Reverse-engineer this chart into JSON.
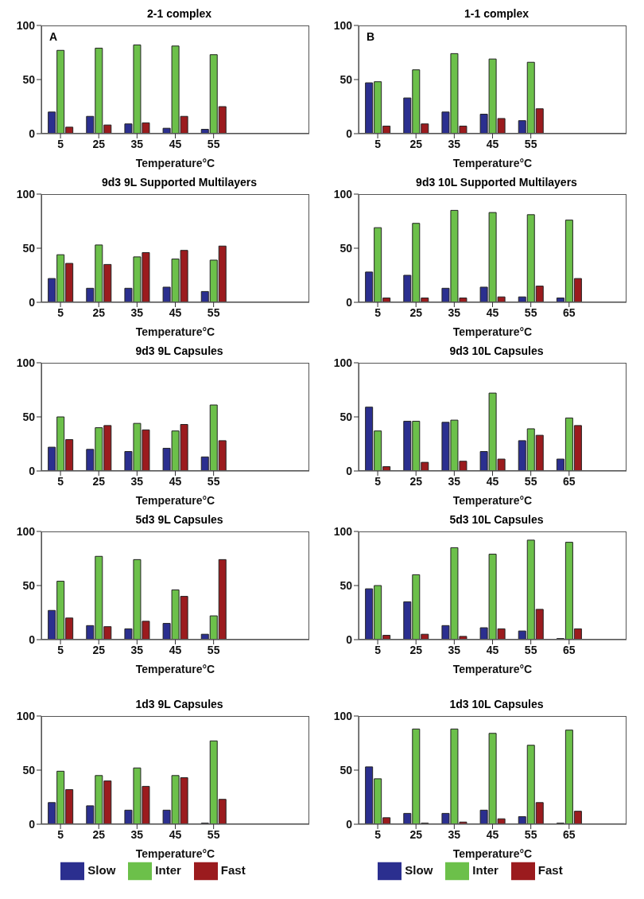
{
  "chart_data": [
    {
      "type": "bar",
      "title": "2-1 complex",
      "xlabel": "Temperature°C",
      "annotations": [
        "A"
      ],
      "categories": [
        "5",
        "25",
        "35",
        "45",
        "55"
      ],
      "ylim": [
        0,
        100
      ],
      "yticks": [
        0,
        50,
        100
      ],
      "series": [
        {
          "color": "#2b2f8f",
          "values": [
            20,
            16,
            9,
            5,
            4
          ]
        },
        {
          "color": "#6cc04a",
          "values": [
            77,
            79,
            82,
            81,
            73
          ]
        },
        {
          "color": "#9b1b1e",
          "values": [
            6,
            8,
            10,
            16,
            25
          ]
        }
      ]
    },
    {
      "type": "bar",
      "title": "1-1 complex",
      "xlabel": "Temperature°C",
      "annotations": [
        "B"
      ],
      "categories": [
        "5",
        "25",
        "35",
        "45",
        "55"
      ],
      "ylim": [
        0,
        100
      ],
      "yticks": [
        0,
        50,
        100
      ],
      "series": [
        {
          "color": "#2b2f8f",
          "values": [
            47,
            33,
            20,
            18,
            12
          ]
        },
        {
          "color": "#6cc04a",
          "values": [
            48,
            59,
            74,
            69,
            66
          ]
        },
        {
          "color": "#9b1b1e",
          "values": [
            7,
            9,
            7,
            14,
            23
          ]
        }
      ]
    },
    {
      "type": "bar",
      "title": "9d3 9L Supported Multilayers",
      "xlabel": "Temperature°C",
      "categories": [
        "5",
        "25",
        "35",
        "45",
        "55"
      ],
      "ylim": [
        0,
        100
      ],
      "yticks": [
        0,
        50,
        100
      ],
      "series": [
        {
          "color": "#2b2f8f",
          "values": [
            22,
            13,
            13,
            14,
            10
          ]
        },
        {
          "color": "#6cc04a",
          "values": [
            44,
            53,
            42,
            40,
            39
          ]
        },
        {
          "color": "#9b1b1e",
          "values": [
            36,
            35,
            46,
            48,
            52
          ]
        }
      ]
    },
    {
      "type": "bar",
      "title": "9d3 10L Supported Multilayers",
      "xlabel": "Temperature°C",
      "categories": [
        "5",
        "25",
        "35",
        "45",
        "55",
        "65"
      ],
      "ylim": [
        0,
        100
      ],
      "yticks": [
        0,
        50,
        100
      ],
      "series": [
        {
          "color": "#2b2f8f",
          "values": [
            28,
            25,
            13,
            14,
            5,
            4
          ]
        },
        {
          "color": "#6cc04a",
          "values": [
            69,
            73,
            85,
            83,
            81,
            76
          ]
        },
        {
          "color": "#9b1b1e",
          "values": [
            4,
            4,
            4,
            5,
            15,
            22
          ]
        }
      ]
    },
    {
      "type": "bar",
      "title": "9d3 9L Capsules",
      "xlabel": "Temperature°C",
      "categories": [
        "5",
        "25",
        "35",
        "45",
        "55"
      ],
      "ylim": [
        0,
        100
      ],
      "yticks": [
        0,
        50,
        100
      ],
      "series": [
        {
          "color": "#2b2f8f",
          "values": [
            22,
            20,
            18,
            21,
            13
          ]
        },
        {
          "color": "#6cc04a",
          "values": [
            50,
            40,
            44,
            37,
            61
          ]
        },
        {
          "color": "#9b1b1e",
          "values": [
            29,
            42,
            38,
            43,
            28
          ]
        }
      ]
    },
    {
      "type": "bar",
      "title": "9d3 10L Capsules",
      "xlabel": "Temperature°C",
      "categories": [
        "5",
        "25",
        "35",
        "45",
        "55",
        "65"
      ],
      "ylim": [
        0,
        100
      ],
      "yticks": [
        0,
        50,
        100
      ],
      "series": [
        {
          "color": "#2b2f8f",
          "values": [
            59,
            46,
            45,
            18,
            28,
            11
          ]
        },
        {
          "color": "#6cc04a",
          "values": [
            37,
            46,
            47,
            72,
            39,
            49
          ]
        },
        {
          "color": "#9b1b1e",
          "values": [
            4,
            8,
            9,
            11,
            33,
            42
          ]
        }
      ]
    },
    {
      "type": "bar",
      "title": "5d3 9L Capsules",
      "xlabel": "Temperature°C",
      "categories": [
        "5",
        "25",
        "35",
        "45",
        "55"
      ],
      "ylim": [
        0,
        100
      ],
      "yticks": [
        0,
        50,
        100
      ],
      "series": [
        {
          "color": "#2b2f8f",
          "values": [
            27,
            13,
            10,
            15,
            5
          ]
        },
        {
          "color": "#6cc04a",
          "values": [
            54,
            77,
            74,
            46,
            22
          ]
        },
        {
          "color": "#9b1b1e",
          "values": [
            20,
            12,
            17,
            40,
            74
          ]
        }
      ]
    },
    {
      "type": "bar",
      "title": "5d3 10L Capsules",
      "xlabel": "Temperature°C",
      "categories": [
        "5",
        "25",
        "35",
        "45",
        "55",
        "65"
      ],
      "ylim": [
        0,
        100
      ],
      "yticks": [
        0,
        50,
        100
      ],
      "series": [
        {
          "color": "#2b2f8f",
          "values": [
            47,
            35,
            13,
            11,
            8,
            1
          ]
        },
        {
          "color": "#6cc04a",
          "values": [
            50,
            60,
            85,
            79,
            92,
            90
          ]
        },
        {
          "color": "#9b1b1e",
          "values": [
            4,
            5,
            3,
            10,
            28,
            10
          ]
        }
      ]
    },
    {
      "type": "bar",
      "title": "1d3 9L Capsules",
      "xlabel": "Temperature°C",
      "legend": "bottom",
      "categories": [
        "5",
        "25",
        "35",
        "45",
        "55"
      ],
      "ylim": [
        0,
        100
      ],
      "yticks": [
        0,
        50,
        100
      ],
      "series": [
        {
          "name": "Slow",
          "color": "#2b2f8f",
          "values": [
            20,
            17,
            13,
            13,
            1
          ]
        },
        {
          "name": "Inter",
          "color": "#6cc04a",
          "values": [
            49,
            45,
            52,
            45,
            77
          ]
        },
        {
          "name": "Fast",
          "color": "#9b1b1e",
          "values": [
            32,
            40,
            35,
            43,
            23
          ]
        }
      ]
    },
    {
      "type": "bar",
      "title": "1d3 10L Capsules",
      "xlabel": "Temperature°C",
      "legend": "bottom",
      "categories": [
        "5",
        "25",
        "35",
        "45",
        "55",
        "65"
      ],
      "ylim": [
        0,
        100
      ],
      "yticks": [
        0,
        50,
        100
      ],
      "series": [
        {
          "name": "Slow",
          "color": "#2b2f8f",
          "values": [
            53,
            10,
            10,
            13,
            7,
            1
          ]
        },
        {
          "name": "Inter",
          "color": "#6cc04a",
          "values": [
            42,
            88,
            88,
            84,
            73,
            87
          ]
        },
        {
          "name": "Fast",
          "color": "#9b1b1e",
          "values": [
            6,
            1,
            2,
            5,
            20,
            12
          ]
        }
      ]
    }
  ]
}
